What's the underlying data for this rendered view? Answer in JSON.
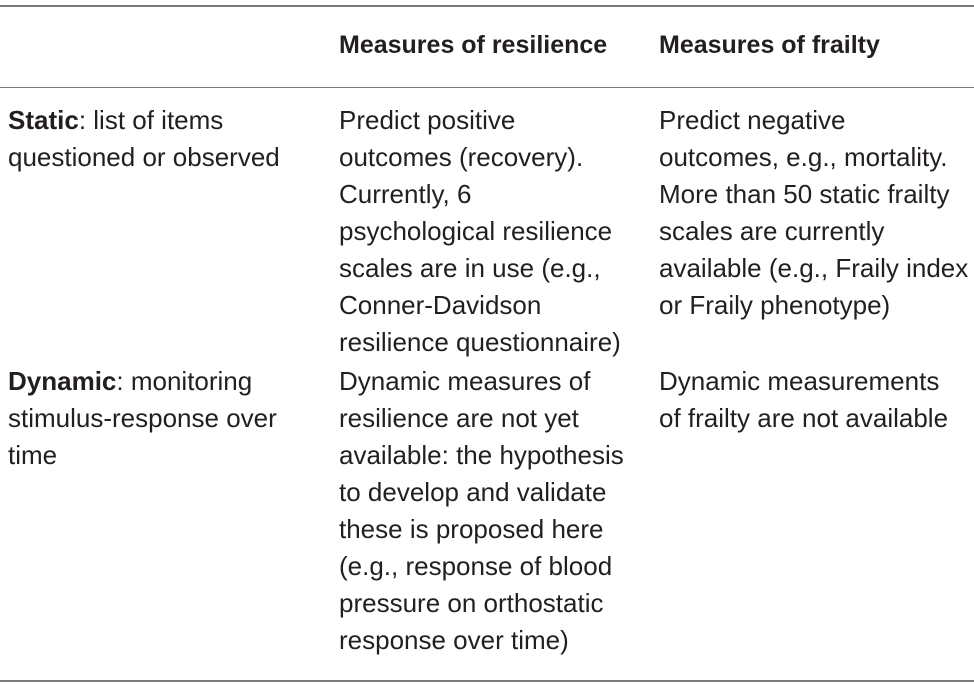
{
  "table": {
    "headers": [
      "",
      "Measures of resilience",
      "Measures of frailty"
    ],
    "rows": [
      {
        "label_bold": "Static",
        "label_rest_lines": [
          ": list of items",
          "questioned or observed"
        ],
        "resilience_lines": [
          "Predict positive",
          "outcomes (recovery).",
          "Currently, 6",
          "psychological resilience",
          "scales are in use (e.g.,",
          "Conner-Davidson",
          "resilience questionnaire)"
        ],
        "frailty_lines": [
          "Predict negative",
          "outcomes, e.g., mortality.",
          "More than 50 static frailty",
          "scales are currently",
          "available (e.g., Fraily index",
          "or Fraily phenotype)"
        ]
      },
      {
        "label_bold": "Dynamic",
        "label_rest_lines": [
          ": monitoring",
          "stimulus-response over",
          "time"
        ],
        "resilience_lines": [
          "Dynamic measures of",
          "resilience are not yet",
          "available: the hypothesis",
          "to develop and validate",
          "these is proposed here",
          "(e.g., response of blood",
          "pressure on orthostatic",
          "response over time)"
        ],
        "frailty_lines": [
          "Dynamic measurements",
          "of frailty are not available"
        ]
      }
    ]
  }
}
